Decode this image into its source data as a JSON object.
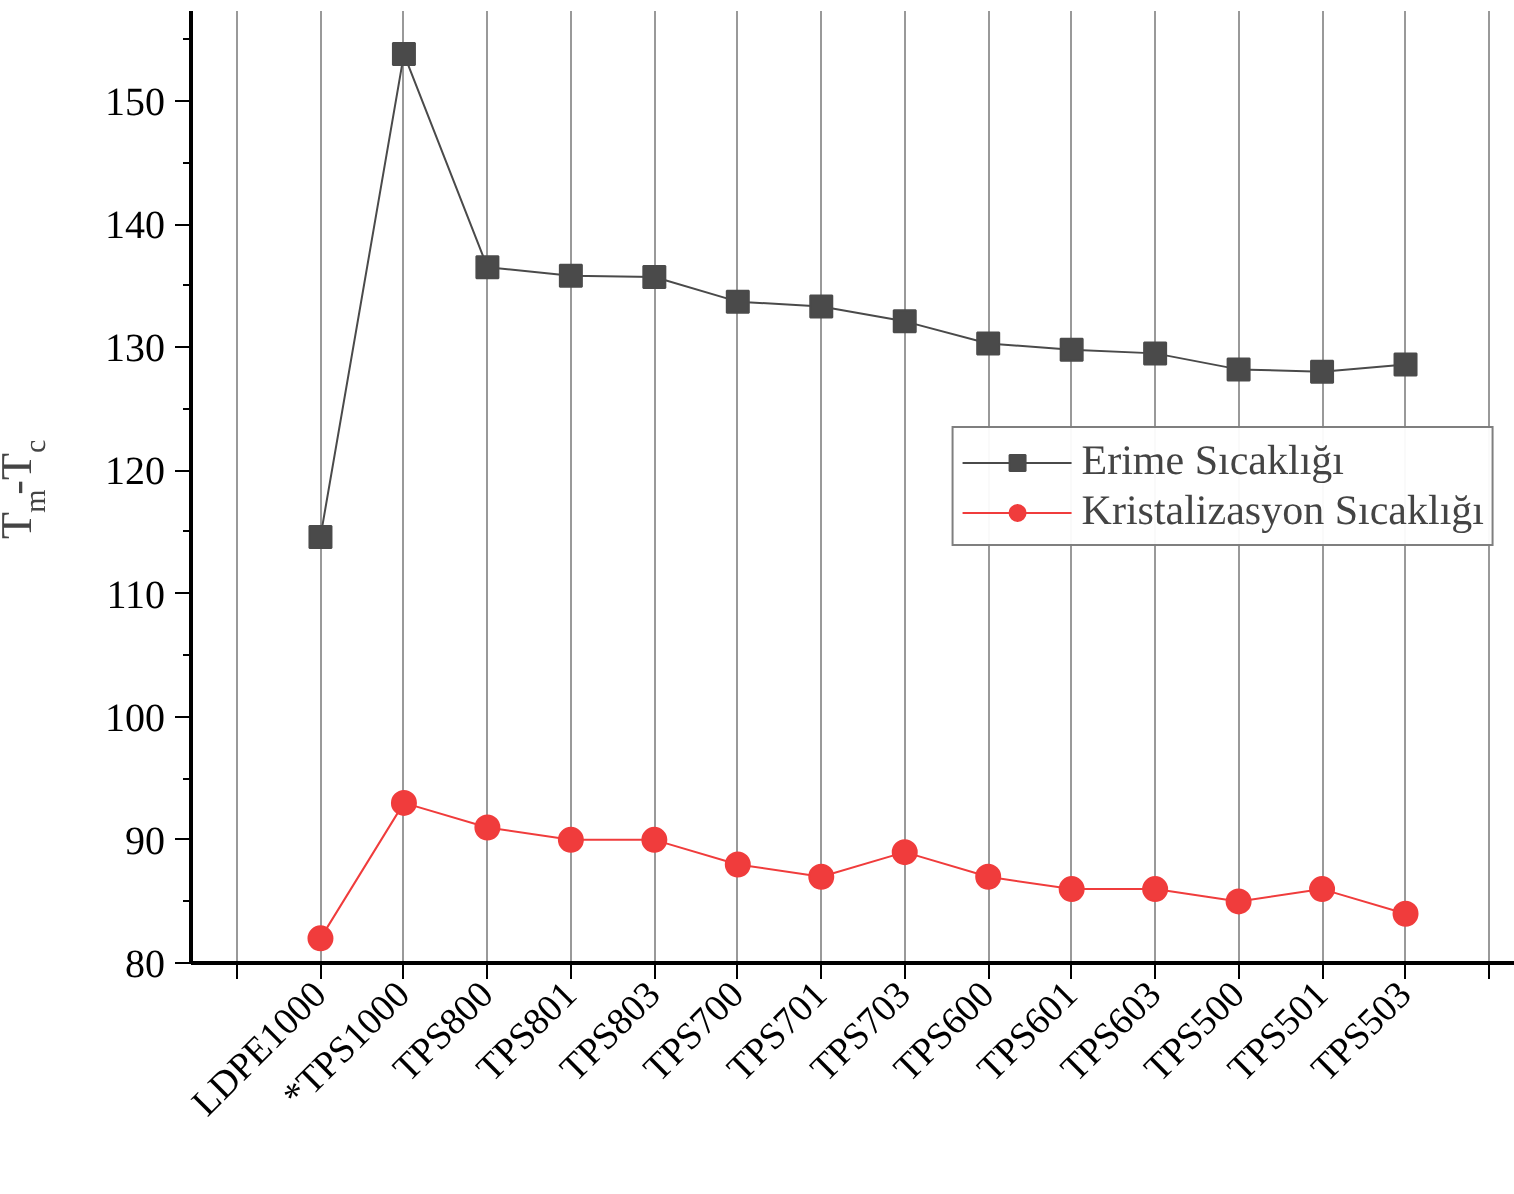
{
  "chart_data": {
    "type": "line",
    "ylabel": "T$_{m}$-T$_{c}$",
    "categories": [
      "LDPE1000",
      "*TPS1000",
      "TPS800",
      "TPS801",
      "TPS803",
      "TPS700",
      "TPS701",
      "TPS703",
      "TPS600",
      "TPS601",
      "TPS603",
      "TPS500",
      "TPS501",
      "TPS503"
    ],
    "series": [
      {
        "name": "Erime Sıcaklığı",
        "color": "#4a4a4a",
        "marker": "square",
        "values": [
          114.6,
          153.8,
          136.5,
          135.8,
          135.7,
          133.7,
          133.3,
          132.1,
          130.3,
          129.8,
          129.5,
          128.2,
          128.0,
          128.6
        ]
      },
      {
        "name": "Kristalizasyon Sıcaklığı",
        "color": "#f03c3c",
        "marker": "circle",
        "values": [
          82,
          93,
          91,
          90,
          90,
          88,
          87,
          89,
          87,
          86,
          86,
          85,
          86,
          84
        ]
      }
    ],
    "ylim": [
      80,
      157.3
    ],
    "yticks": [
      80,
      90,
      100,
      110,
      120,
      130,
      140,
      150
    ],
    "grid": "x",
    "legend": "right",
    "line_style": "solid"
  }
}
